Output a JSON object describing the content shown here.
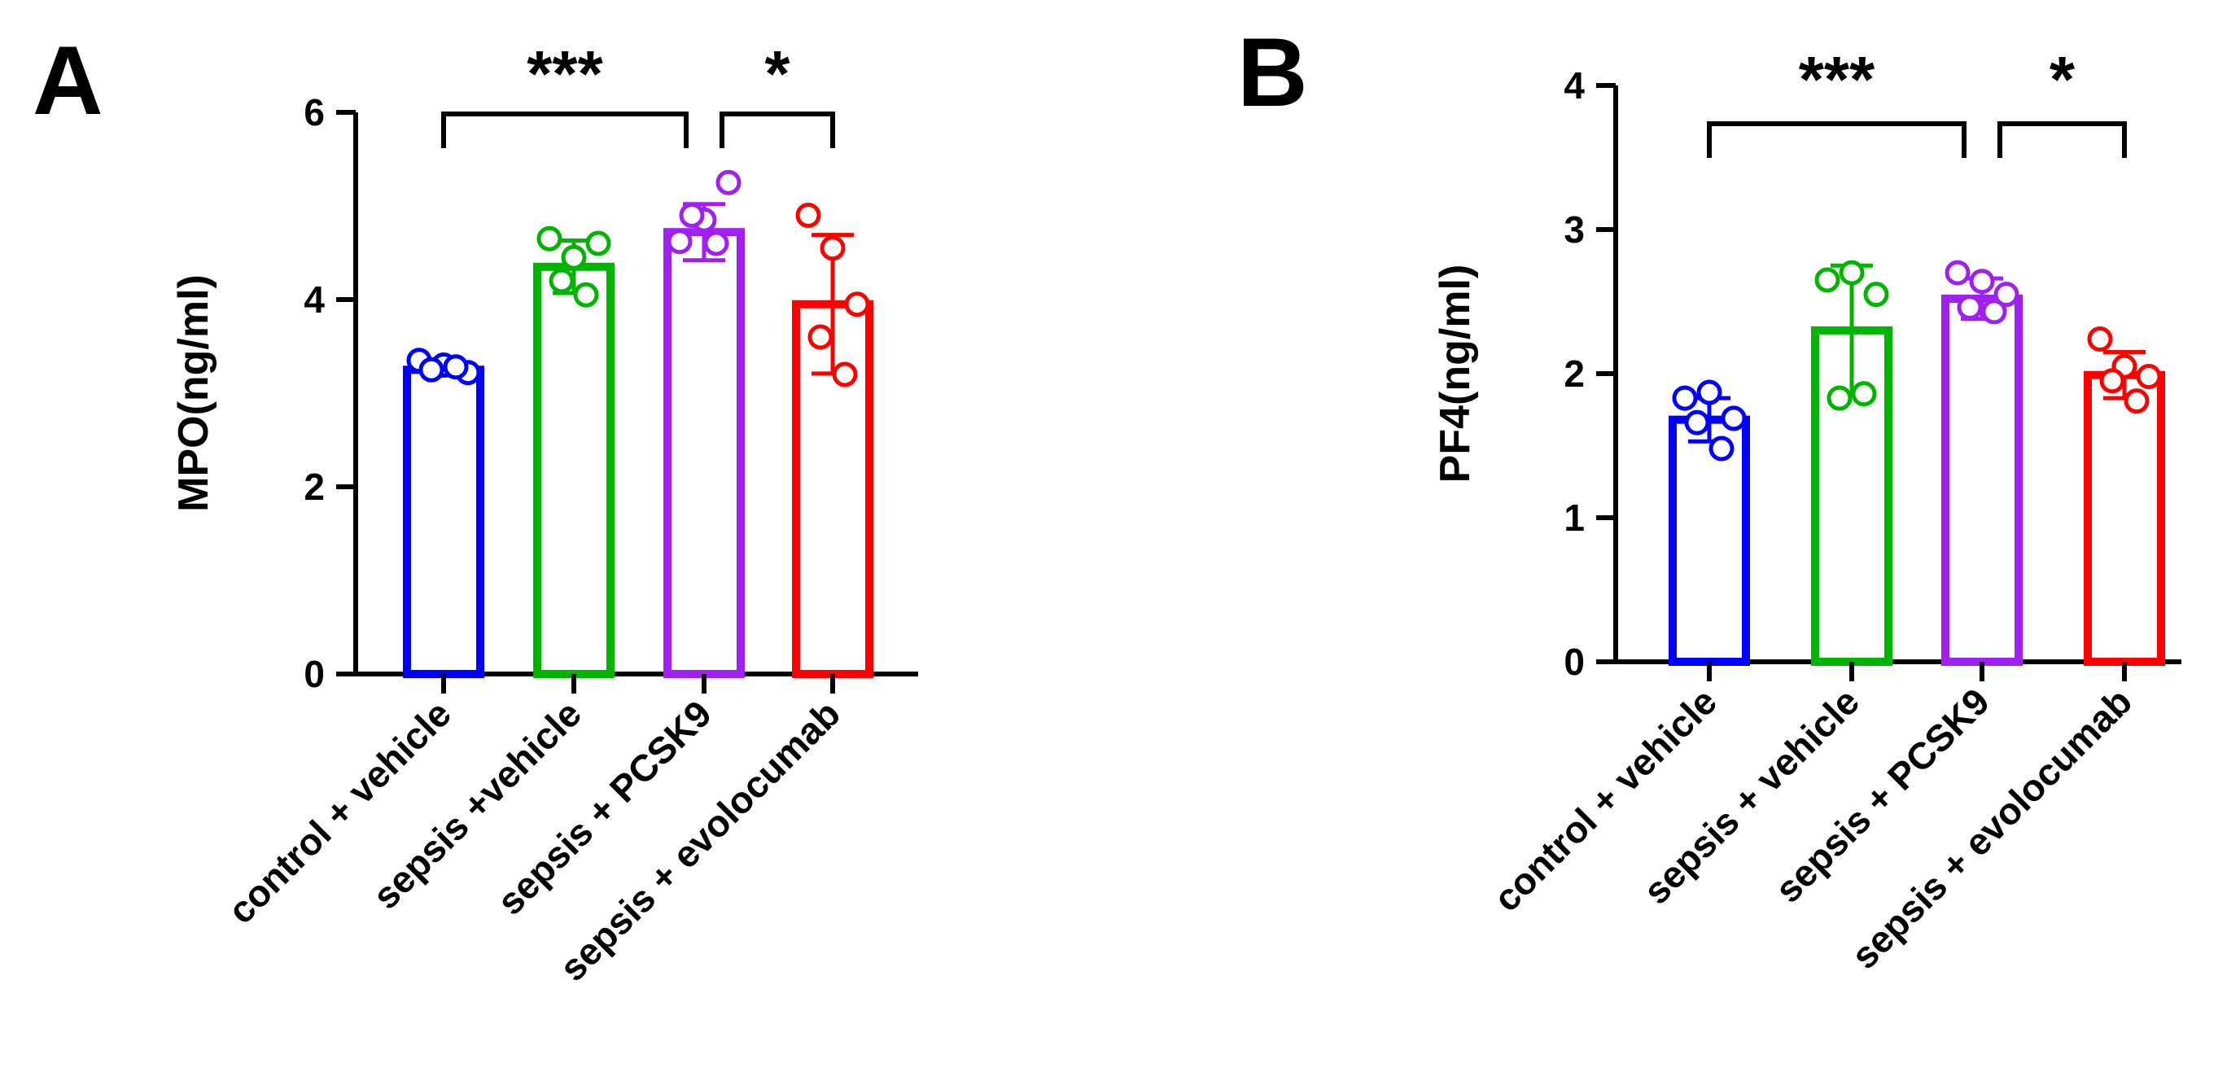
{
  "chart_data": [
    {
      "type": "bar",
      "panel": "A",
      "ylabel": "MPO(ng/ml)",
      "ylim": [
        0,
        6
      ],
      "yticks": [
        0,
        2,
        4,
        6
      ],
      "categories": [
        "control + vehicle",
        "sepsis +vehicle",
        "sepsis + PCSK9",
        "sepsis + evolocumab"
      ],
      "colors": [
        "#0000FF",
        "#00B400",
        "#A020F0",
        "#FF0000"
      ],
      "values": [
        3.25,
        4.35,
        4.72,
        3.95
      ],
      "errors": [
        0.06,
        0.28,
        0.3,
        0.74
      ],
      "points": [
        [
          3.35,
          3.3,
          3.22,
          3.25,
          3.28
        ],
        [
          4.65,
          4.45,
          4.6,
          4.2,
          4.05
        ],
        [
          4.62,
          4.85,
          5.25,
          4.9,
          4.6
        ],
        [
          4.9,
          4.55,
          3.95,
          3.6,
          3.2
        ]
      ],
      "significance": [
        {
          "from": 0,
          "to": 2,
          "label": "***"
        },
        {
          "from": 2,
          "to": 3,
          "label": "*"
        }
      ]
    },
    {
      "type": "bar",
      "panel": "B",
      "ylabel": "PF4(ng/ml)",
      "ylim": [
        0,
        4
      ],
      "yticks": [
        0,
        1,
        2,
        3,
        4
      ],
      "categories": [
        "control + vehicle",
        "sepsis + vehicle",
        "sepsis + PCSK9",
        "sepsis + evolocumab"
      ],
      "colors": [
        "#0000FF",
        "#00B400",
        "#A020F0",
        "#FF0000"
      ],
      "values": [
        1.68,
        2.3,
        2.52,
        1.99
      ],
      "errors": [
        0.15,
        0.45,
        0.14,
        0.16
      ],
      "points": [
        [
          1.83,
          1.87,
          1.69,
          1.66,
          1.48
        ],
        [
          2.65,
          2.7,
          2.55,
          1.83,
          1.86
        ],
        [
          2.7,
          2.64,
          2.55,
          2.46,
          2.43
        ],
        [
          2.24,
          2.05,
          1.98,
          1.95,
          1.81
        ]
      ],
      "significance": [
        {
          "from": 0,
          "to": 2,
          "label": "***"
        },
        {
          "from": 2,
          "to": 3,
          "label": "*"
        }
      ]
    }
  ]
}
